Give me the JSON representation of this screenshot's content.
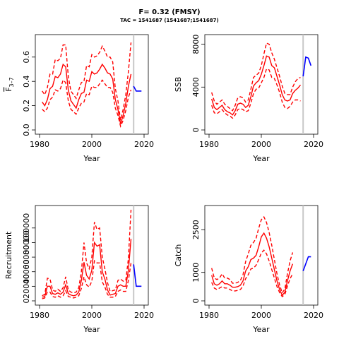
{
  "header": {
    "title": "F= 0.32 (FMSY)",
    "subtitle": "TAC = 1541687 (1541687;1541687)"
  },
  "colors": {
    "historic": "#ff0000",
    "projection": "#0000ff",
    "divider": "#c8c8c8"
  },
  "chart_data": [
    {
      "type": "line",
      "xlabel": "Year",
      "ylabel": "F̅ 3–7",
      "ylabel_main": "F",
      "ylabel_sub": "3–7",
      "xlim": [
        1980,
        2020
      ],
      "ylim": [
        0,
        0.75
      ],
      "xticks": [
        1980,
        2000,
        2020
      ],
      "yticks": [
        0,
        0.2,
        0.4,
        0.6
      ],
      "ytick_labels": [
        "0.0",
        "0.2",
        "0.4",
        "0.6"
      ],
      "divider_x": 2016,
      "x": [
        1981,
        1982,
        1983,
        1984,
        1985,
        1986,
        1987,
        1988,
        1989,
        1990,
        1991,
        1992,
        1993,
        1994,
        1995,
        1996,
        1997,
        1998,
        1999,
        2000,
        2001,
        2002,
        2003,
        2004,
        2005,
        2006,
        2007,
        2008,
        2009,
        2010,
        2011,
        2012,
        2013,
        2014,
        2015
      ],
      "series": [
        {
          "role": "estimate",
          "values": [
            0.23,
            0.2,
            0.25,
            0.34,
            0.36,
            0.44,
            0.43,
            0.46,
            0.54,
            0.52,
            0.33,
            0.24,
            0.21,
            0.18,
            0.25,
            0.3,
            0.31,
            0.41,
            0.4,
            0.48,
            0.46,
            0.47,
            0.5,
            0.54,
            0.51,
            0.47,
            0.46,
            0.42,
            0.25,
            0.17,
            0.05,
            0.12,
            0.22,
            0.36,
            0.46
          ]
        },
        {
          "role": "upper",
          "values": [
            0.32,
            0.29,
            0.35,
            0.46,
            0.46,
            0.58,
            0.57,
            0.59,
            0.7,
            0.7,
            0.44,
            0.32,
            0.29,
            0.26,
            0.33,
            0.39,
            0.4,
            0.53,
            0.52,
            0.62,
            0.6,
            0.61,
            0.64,
            0.69,
            0.65,
            0.6,
            0.6,
            0.56,
            0.34,
            0.24,
            0.08,
            0.17,
            0.29,
            0.48,
            0.72
          ]
        },
        {
          "role": "lower",
          "values": [
            0.17,
            0.15,
            0.18,
            0.25,
            0.27,
            0.33,
            0.32,
            0.34,
            0.41,
            0.39,
            0.24,
            0.17,
            0.15,
            0.13,
            0.18,
            0.22,
            0.23,
            0.3,
            0.29,
            0.36,
            0.35,
            0.35,
            0.38,
            0.41,
            0.38,
            0.35,
            0.35,
            0.31,
            0.18,
            0.12,
            0.03,
            0.08,
            0.16,
            0.27,
            0.33
          ]
        }
      ],
      "projection": {
        "x": [
          2016,
          2017,
          2018,
          2019
        ],
        "values": [
          0.36,
          0.32,
          0.32,
          0.32
        ]
      }
    },
    {
      "type": "line",
      "xlabel": "Year",
      "ylabel": "SSB",
      "xlim": [
        1980,
        2020
      ],
      "ylim": [
        0,
        8500
      ],
      "xticks": [
        1980,
        2000,
        2020
      ],
      "yticks": [
        0,
        4000,
        8000
      ],
      "ytick_labels": [
        "0",
        "4000",
        "8000"
      ],
      "divider_x": 2016,
      "x": [
        1981,
        1982,
        1983,
        1984,
        1985,
        1986,
        1987,
        1988,
        1989,
        1990,
        1991,
        1992,
        1993,
        1994,
        1995,
        1996,
        1997,
        1998,
        1999,
        2000,
        2001,
        2002,
        2003,
        2004,
        2005,
        2006,
        2007,
        2008,
        2009,
        2010,
        2011,
        2012,
        2013,
        2014,
        2015
      ],
      "series": [
        {
          "role": "estimate",
          "values": [
            2900,
            2100,
            1900,
            2100,
            2300,
            1900,
            1700,
            1600,
            1400,
            1800,
            2400,
            2500,
            2400,
            2100,
            2300,
            3100,
            4100,
            4400,
            4600,
            5200,
            6000,
            6900,
            6800,
            6000,
            5800,
            5000,
            4200,
            3300,
            2800,
            2700,
            2800,
            3400,
            3700,
            3900,
            4200
          ]
        },
        {
          "role": "upper",
          "values": [
            3500,
            2700,
            2400,
            2600,
            2800,
            2400,
            2200,
            2000,
            1800,
            2300,
            3000,
            3100,
            3000,
            2600,
            2800,
            3800,
            4900,
            5100,
            5300,
            6000,
            7100,
            8100,
            8000,
            7200,
            6600,
            5800,
            5000,
            4100,
            3400,
            3300,
            3300,
            4000,
            4500,
            4800,
            4900
          ]
        },
        {
          "role": "lower",
          "values": [
            2300,
            1600,
            1500,
            1700,
            1900,
            1600,
            1400,
            1300,
            1100,
            1400,
            1900,
            2000,
            1900,
            1700,
            1800,
            2500,
            3400,
            3800,
            3900,
            4400,
            4900,
            5700,
            5600,
            4900,
            4800,
            4200,
            3500,
            2600,
            2100,
            2000,
            2200,
            2600,
            2800,
            2800,
            2700
          ]
        }
      ],
      "projection": {
        "x": [
          2016,
          2017,
          2018,
          2019
        ],
        "values": [
          5000,
          6800,
          6700,
          6000
        ]
      }
    },
    {
      "type": "line",
      "xlabel": "Year",
      "ylabel": "Recruitment",
      "xlim": [
        1980,
        2020
      ],
      "ylim": [
        0,
        125000
      ],
      "xticks": [
        1980,
        2000,
        2020
      ],
      "yticks": [
        0,
        20000,
        40000,
        60000,
        80000,
        100000
      ],
      "ytick_labels": [
        "0",
        "",
        "40000",
        "",
        "80000",
        ""
      ],
      "ytick_labels_rotated": [
        "",
        "20000",
        "",
        "60000",
        "",
        "100000"
      ],
      "divider_x": 2016,
      "x": [
        1981,
        1982,
        1983,
        1984,
        1985,
        1986,
        1987,
        1988,
        1989,
        1990,
        1991,
        1992,
        1993,
        1994,
        1995,
        1996,
        1997,
        1998,
        1999,
        2000,
        2001,
        2002,
        2003,
        2004,
        2005,
        2006,
        2007,
        2008,
        2009,
        2010,
        2011,
        2012,
        2013,
        2014,
        2015
      ],
      "series": [
        {
          "role": "estimate",
          "values": [
            5000,
            6000,
            20000,
            20000,
            10000,
            9000,
            11000,
            9000,
            12000,
            22000,
            10000,
            8000,
            7000,
            8000,
            12000,
            28000,
            53000,
            35000,
            30000,
            42000,
            80000,
            75000,
            77000,
            40000,
            30000,
            15000,
            8000,
            9000,
            10000,
            20000,
            22000,
            20000,
            20000,
            42000,
            85000
          ]
        },
        {
          "role": "upper",
          "values": [
            7000,
            9000,
            31000,
            30000,
            15000,
            13000,
            16000,
            13000,
            18000,
            33000,
            15000,
            12000,
            11000,
            12000,
            18000,
            40000,
            80000,
            52000,
            44000,
            60000,
            108000,
            98000,
            100000,
            60000,
            44000,
            25000,
            13000,
            14000,
            15000,
            28000,
            30000,
            27000,
            28000,
            58000,
            125000
          ]
        },
        {
          "role": "lower",
          "values": [
            3000,
            4000,
            12000,
            12000,
            6000,
            5000,
            7000,
            5000,
            7000,
            14000,
            6000,
            5000,
            4000,
            5000,
            7000,
            17000,
            33000,
            22000,
            19000,
            27000,
            55000,
            52000,
            52000,
            26000,
            19000,
            9000,
            5000,
            5000,
            6000,
            13000,
            15000,
            13000,
            13000,
            28000,
            52000
          ]
        }
      ],
      "projection": {
        "x": [
          2016,
          2017,
          2018,
          2019
        ],
        "values": [
          50000,
          20000,
          20000,
          20000
        ]
      }
    },
    {
      "type": "line",
      "xlabel": "Year",
      "ylabel": "Catch",
      "xlim": [
        1980,
        2020
      ],
      "ylim": [
        0,
        3200
      ],
      "xticks": [
        1980,
        2000,
        2020
      ],
      "yticks": [
        0,
        1000,
        2500
      ],
      "ytick_labels": [
        "0",
        "1000",
        "2500"
      ],
      "divider_x": 2016,
      "x": [
        1981,
        1982,
        1983,
        1984,
        1985,
        1986,
        1987,
        1988,
        1989,
        1990,
        1991,
        1992,
        1993,
        1994,
        1995,
        1996,
        1997,
        1998,
        1999,
        2000,
        2001,
        2002,
        2003,
        2004,
        2005,
        2006,
        2007,
        2008,
        2009,
        2010,
        2011,
        2012,
        2013,
        2014,
        2015
      ],
      "series": [
        {
          "role": "estimate",
          "values": [
            900,
            600,
            550,
            600,
            700,
            600,
            600,
            550,
            480,
            480,
            500,
            550,
            700,
            1050,
            1200,
            1450,
            1500,
            1600,
            1900,
            2250,
            2380,
            2200,
            1900,
            1500,
            1100,
            700,
            400,
            200,
            300,
            700,
            1050,
            1300,
            null,
            null,
            null
          ]
        },
        {
          "role": "upper",
          "values": [
            1150,
            800,
            750,
            800,
            950,
            800,
            800,
            750,
            620,
            620,
            650,
            720,
            920,
            1380,
            1650,
            1950,
            2050,
            2200,
            2550,
            2850,
            2950,
            2750,
            2400,
            1950,
            1450,
            950,
            560,
            280,
            420,
            950,
            1400,
            1700,
            null,
            null,
            null
          ]
        },
        {
          "role": "lower",
          "values": [
            650,
            450,
            400,
            450,
            500,
            450,
            450,
            400,
            350,
            350,
            370,
            400,
            520,
            780,
            920,
            1120,
            1150,
            1250,
            1450,
            1680,
            1780,
            1650,
            1400,
            1100,
            800,
            500,
            290,
            150,
            220,
            520,
            780,
            950,
            null,
            null,
            null
          ]
        }
      ],
      "projection": {
        "x": [
          2016,
          2017,
          2018,
          2019
        ],
        "values": [
          1050,
          1300,
          1550,
          1550
        ]
      }
    }
  ]
}
